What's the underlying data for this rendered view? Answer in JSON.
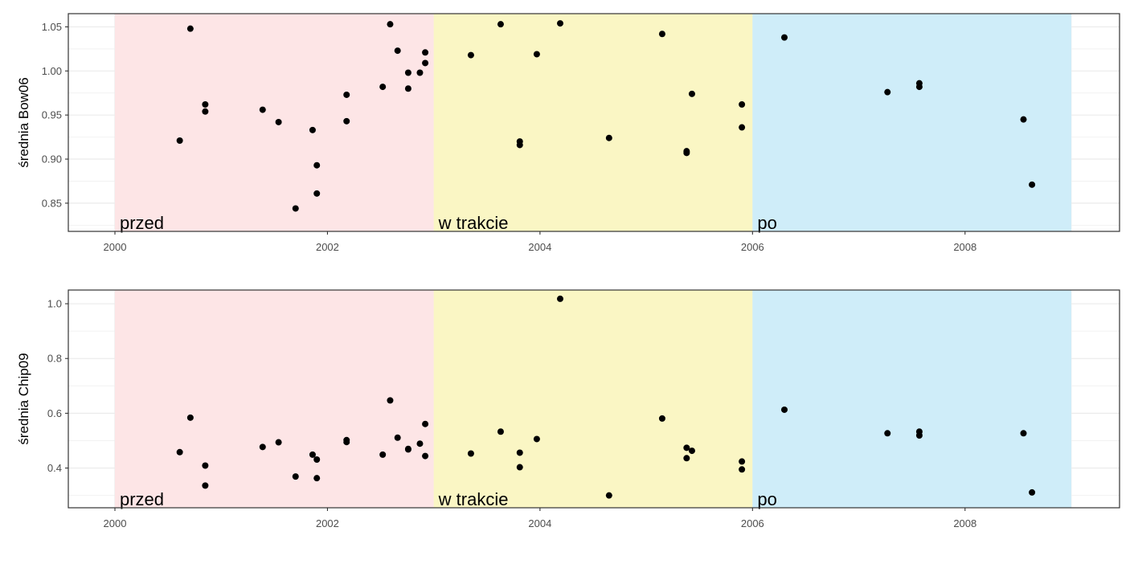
{
  "chart_data": [
    {
      "type": "scatter",
      "ylabel": "średnia Bow06",
      "xlabel": "",
      "xlim": [
        2000,
        2009
      ],
      "ylim": [
        0.818,
        1.065
      ],
      "x_ticks": [
        2000,
        2002,
        2004,
        2006,
        2008
      ],
      "x_tick_labels": [
        "2000",
        "2002",
        "2004",
        "2006",
        "2008"
      ],
      "y_ticks": [
        0.85,
        0.9,
        0.95,
        1.0,
        1.05
      ],
      "y_tick_labels": [
        "0.85",
        "0.90",
        "0.95",
        "1.00",
        "1.05"
      ],
      "grid": true,
      "periods": [
        {
          "label": "przed",
          "start": 2000,
          "end": 2003,
          "color": "#fde5e6"
        },
        {
          "label": "w trakcie",
          "start": 2003,
          "end": 2006,
          "color": "#faf6c4"
        },
        {
          "label": "po",
          "start": 2006,
          "end": 2009,
          "color": "#cfedf9"
        }
      ],
      "points": [
        [
          2000.61,
          0.921
        ],
        [
          2000.71,
          1.048
        ],
        [
          2000.85,
          0.962
        ],
        [
          2000.85,
          0.954
        ],
        [
          2001.39,
          0.956
        ],
        [
          2001.54,
          0.942
        ],
        [
          2001.7,
          0.844
        ],
        [
          2001.86,
          0.933
        ],
        [
          2001.9,
          0.893
        ],
        [
          2001.9,
          0.861
        ],
        [
          2002.18,
          0.973
        ],
        [
          2002.18,
          0.943
        ],
        [
          2002.52,
          0.982
        ],
        [
          2002.59,
          1.053
        ],
        [
          2002.66,
          1.023
        ],
        [
          2002.76,
          0.998
        ],
        [
          2002.76,
          0.98
        ],
        [
          2002.87,
          0.998
        ],
        [
          2002.92,
          1.021
        ],
        [
          2002.92,
          1.009
        ],
        [
          2003.35,
          1.018
        ],
        [
          2003.63,
          1.053
        ],
        [
          2003.81,
          0.92
        ],
        [
          2003.81,
          0.916
        ],
        [
          2003.97,
          1.019
        ],
        [
          2004.19,
          1.054
        ],
        [
          2004.65,
          0.924
        ],
        [
          2005.15,
          1.042
        ],
        [
          2005.38,
          0.909
        ],
        [
          2005.38,
          0.907
        ],
        [
          2005.43,
          0.974
        ],
        [
          2005.9,
          0.962
        ],
        [
          2005.9,
          0.936
        ],
        [
          2006.3,
          1.038
        ],
        [
          2007.27,
          0.976
        ],
        [
          2007.57,
          0.986
        ],
        [
          2007.57,
          0.982
        ],
        [
          2008.55,
          0.945
        ],
        [
          2008.63,
          0.871
        ]
      ]
    },
    {
      "type": "scatter",
      "ylabel": "średnia Chip09",
      "xlabel": "",
      "xlim": [
        2000,
        2009
      ],
      "ylim": [
        0.255,
        1.05
      ],
      "x_ticks": [
        2000,
        2002,
        2004,
        2006,
        2008
      ],
      "x_tick_labels": [
        "2000",
        "2002",
        "2004",
        "2006",
        "2008"
      ],
      "y_ticks": [
        0.4,
        0.6,
        0.8,
        1.0
      ],
      "y_tick_labels": [
        "0.4",
        "0.6",
        "0.8",
        "1.0"
      ],
      "grid": true,
      "periods": [
        {
          "label": "przed",
          "start": 2000,
          "end": 2003,
          "color": "#fde5e6"
        },
        {
          "label": "w trakcie",
          "start": 2003,
          "end": 2006,
          "color": "#faf6c4"
        },
        {
          "label": "po",
          "start": 2006,
          "end": 2009,
          "color": "#cfedf9"
        }
      ],
      "points": [
        [
          2000.61,
          0.458
        ],
        [
          2000.71,
          0.584
        ],
        [
          2000.85,
          0.409
        ],
        [
          2000.85,
          0.336
        ],
        [
          2001.39,
          0.477
        ],
        [
          2001.54,
          0.494
        ],
        [
          2001.7,
          0.369
        ],
        [
          2001.86,
          0.449
        ],
        [
          2001.9,
          0.431
        ],
        [
          2001.9,
          0.363
        ],
        [
          2002.18,
          0.502
        ],
        [
          2002.18,
          0.495
        ],
        [
          2002.52,
          0.449
        ],
        [
          2002.59,
          0.647
        ],
        [
          2002.66,
          0.511
        ],
        [
          2002.76,
          0.47
        ],
        [
          2002.76,
          0.468
        ],
        [
          2002.87,
          0.489
        ],
        [
          2002.92,
          0.561
        ],
        [
          2002.92,
          0.444
        ],
        [
          2003.35,
          0.453
        ],
        [
          2003.63,
          0.533
        ],
        [
          2003.81,
          0.456
        ],
        [
          2003.81,
          0.403
        ],
        [
          2003.97,
          0.506
        ],
        [
          2004.19,
          1.018
        ],
        [
          2004.65,
          0.3
        ],
        [
          2005.15,
          0.581
        ],
        [
          2005.38,
          0.474
        ],
        [
          2005.38,
          0.436
        ],
        [
          2005.43,
          0.463
        ],
        [
          2005.9,
          0.424
        ],
        [
          2005.9,
          0.395
        ],
        [
          2006.3,
          0.613
        ],
        [
          2007.27,
          0.527
        ],
        [
          2007.57,
          0.533
        ],
        [
          2007.57,
          0.519
        ],
        [
          2008.55,
          0.527
        ],
        [
          2008.63,
          0.311
        ]
      ]
    }
  ]
}
